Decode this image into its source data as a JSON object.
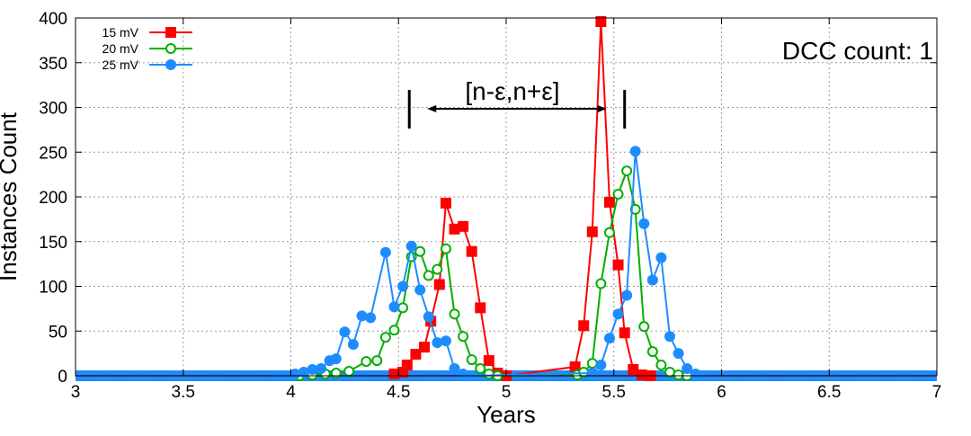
{
  "chart_data": {
    "type": "line",
    "title": "",
    "xlabel": "Years",
    "ylabel": "Instances Count",
    "xlim": [
      3,
      7
    ],
    "ylim": [
      0,
      400
    ],
    "x_ticks": [
      "3",
      "3.5",
      "4",
      "4.5",
      "5",
      "5.5",
      "6",
      "6.5",
      "7"
    ],
    "y_ticks": [
      "0",
      "50",
      "100",
      "150",
      "200",
      "250",
      "300",
      "350",
      "400"
    ],
    "grid": true,
    "legend_position": "top-left",
    "annotations": {
      "dcc_count": "DCC count: 1",
      "interval_label": "[n-ε,n+ε]",
      "interval_range": [
        4.55,
        5.55
      ]
    },
    "series": [
      {
        "name": "15 mV",
        "color": "#ff0000",
        "marker": "square-filled",
        "points": [
          [
            4.48,
            2
          ],
          [
            4.52,
            4
          ],
          [
            4.54,
            12
          ],
          [
            4.58,
            24
          ],
          [
            4.62,
            32
          ],
          [
            4.65,
            61
          ],
          [
            4.69,
            102
          ],
          [
            4.72,
            193
          ],
          [
            4.76,
            164
          ],
          [
            4.8,
            167
          ],
          [
            4.84,
            139
          ],
          [
            4.88,
            76
          ],
          [
            4.92,
            17
          ],
          [
            4.96,
            3
          ],
          [
            5.0,
            0
          ],
          [
            5.32,
            10
          ],
          [
            5.36,
            56
          ],
          [
            5.4,
            161
          ],
          [
            5.44,
            396
          ],
          [
            5.48,
            194
          ],
          [
            5.52,
            124
          ],
          [
            5.55,
            48
          ],
          [
            5.59,
            7
          ],
          [
            5.63,
            1
          ],
          [
            5.67,
            0
          ]
        ]
      },
      {
        "name": "20 mV",
        "color": "#00b000",
        "marker": "circle-open",
        "points": [
          [
            4.04,
            0
          ],
          [
            4.1,
            1
          ],
          [
            4.16,
            2
          ],
          [
            4.21,
            3
          ],
          [
            4.27,
            5
          ],
          [
            4.35,
            16
          ],
          [
            4.4,
            17
          ],
          [
            4.44,
            43
          ],
          [
            4.48,
            51
          ],
          [
            4.52,
            76
          ],
          [
            4.56,
            133
          ],
          [
            4.6,
            139
          ],
          [
            4.64,
            112
          ],
          [
            4.68,
            119
          ],
          [
            4.72,
            142
          ],
          [
            4.76,
            69
          ],
          [
            4.8,
            44
          ],
          [
            4.84,
            18
          ],
          [
            4.88,
            8
          ],
          [
            4.92,
            2
          ],
          [
            4.96,
            0
          ],
          [
            5.33,
            1
          ],
          [
            5.36,
            4
          ],
          [
            5.4,
            14
          ],
          [
            5.44,
            103
          ],
          [
            5.48,
            160
          ],
          [
            5.52,
            203
          ],
          [
            5.56,
            229
          ],
          [
            5.6,
            186
          ],
          [
            5.64,
            55
          ],
          [
            5.68,
            27
          ],
          [
            5.72,
            12
          ],
          [
            5.76,
            4
          ],
          [
            5.8,
            1
          ],
          [
            5.84,
            0
          ]
        ]
      },
      {
        "name": "25 mV",
        "color": "#1e8cff",
        "marker": "circle-filled",
        "points": [
          [
            3.95,
            0
          ],
          [
            4.02,
            2
          ],
          [
            4.06,
            4
          ],
          [
            4.1,
            7
          ],
          [
            4.14,
            8
          ],
          [
            4.18,
            17
          ],
          [
            4.21,
            19
          ],
          [
            4.25,
            49
          ],
          [
            4.29,
            35
          ],
          [
            4.33,
            67
          ],
          [
            4.37,
            65
          ],
          [
            4.44,
            138
          ],
          [
            4.48,
            77
          ],
          [
            4.52,
            100
          ],
          [
            4.56,
            145
          ],
          [
            4.6,
            96
          ],
          [
            4.64,
            66
          ],
          [
            4.68,
            37
          ],
          [
            4.72,
            39
          ],
          [
            4.76,
            8
          ],
          [
            4.8,
            2
          ],
          [
            4.84,
            0
          ],
          [
            5.4,
            3
          ],
          [
            5.44,
            12
          ],
          [
            5.48,
            42
          ],
          [
            5.52,
            69
          ],
          [
            5.56,
            90
          ],
          [
            5.6,
            251
          ],
          [
            5.64,
            170
          ],
          [
            5.68,
            107
          ],
          [
            5.72,
            132
          ],
          [
            5.76,
            44
          ],
          [
            5.8,
            25
          ],
          [
            5.84,
            8
          ],
          [
            5.88,
            2
          ],
          [
            5.92,
            0
          ]
        ]
      }
    ]
  }
}
